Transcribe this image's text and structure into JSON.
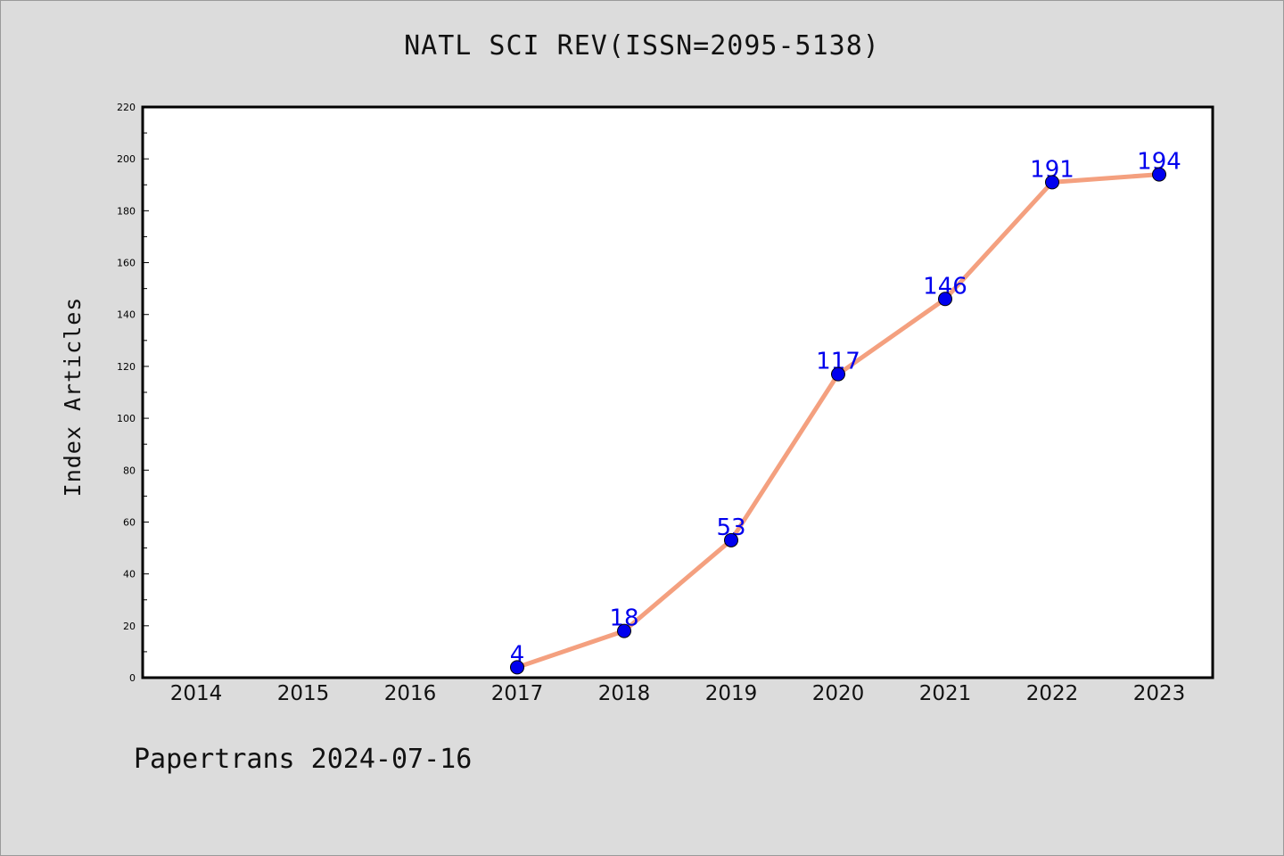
{
  "footer": "Papertrans 2024-07-16",
  "colors": {
    "line": "#f4a07f",
    "marker": "#0000ee",
    "label": "#0000ee",
    "plot_bg": "#ffffff",
    "page_bg": "#dcdcdc",
    "axis": "#000000"
  },
  "chart_data": {
    "type": "line",
    "title": "NATL SCI REV(ISSN=2095-5138)",
    "xlabel": "",
    "ylabel": "Index Articles",
    "categories": [
      "2014",
      "2015",
      "2016",
      "2017",
      "2018",
      "2019",
      "2020",
      "2021",
      "2022",
      "2023"
    ],
    "series": [
      {
        "values": [
          null,
          null,
          null,
          4,
          18,
          53,
          117,
          146,
          191,
          194
        ]
      }
    ],
    "yticks": [
      0,
      20,
      40,
      60,
      80,
      100,
      120,
      140,
      160,
      180,
      200,
      220
    ],
    "ylim": [
      0,
      220
    ],
    "grid": false,
    "legend": "none",
    "data_labels": true
  }
}
